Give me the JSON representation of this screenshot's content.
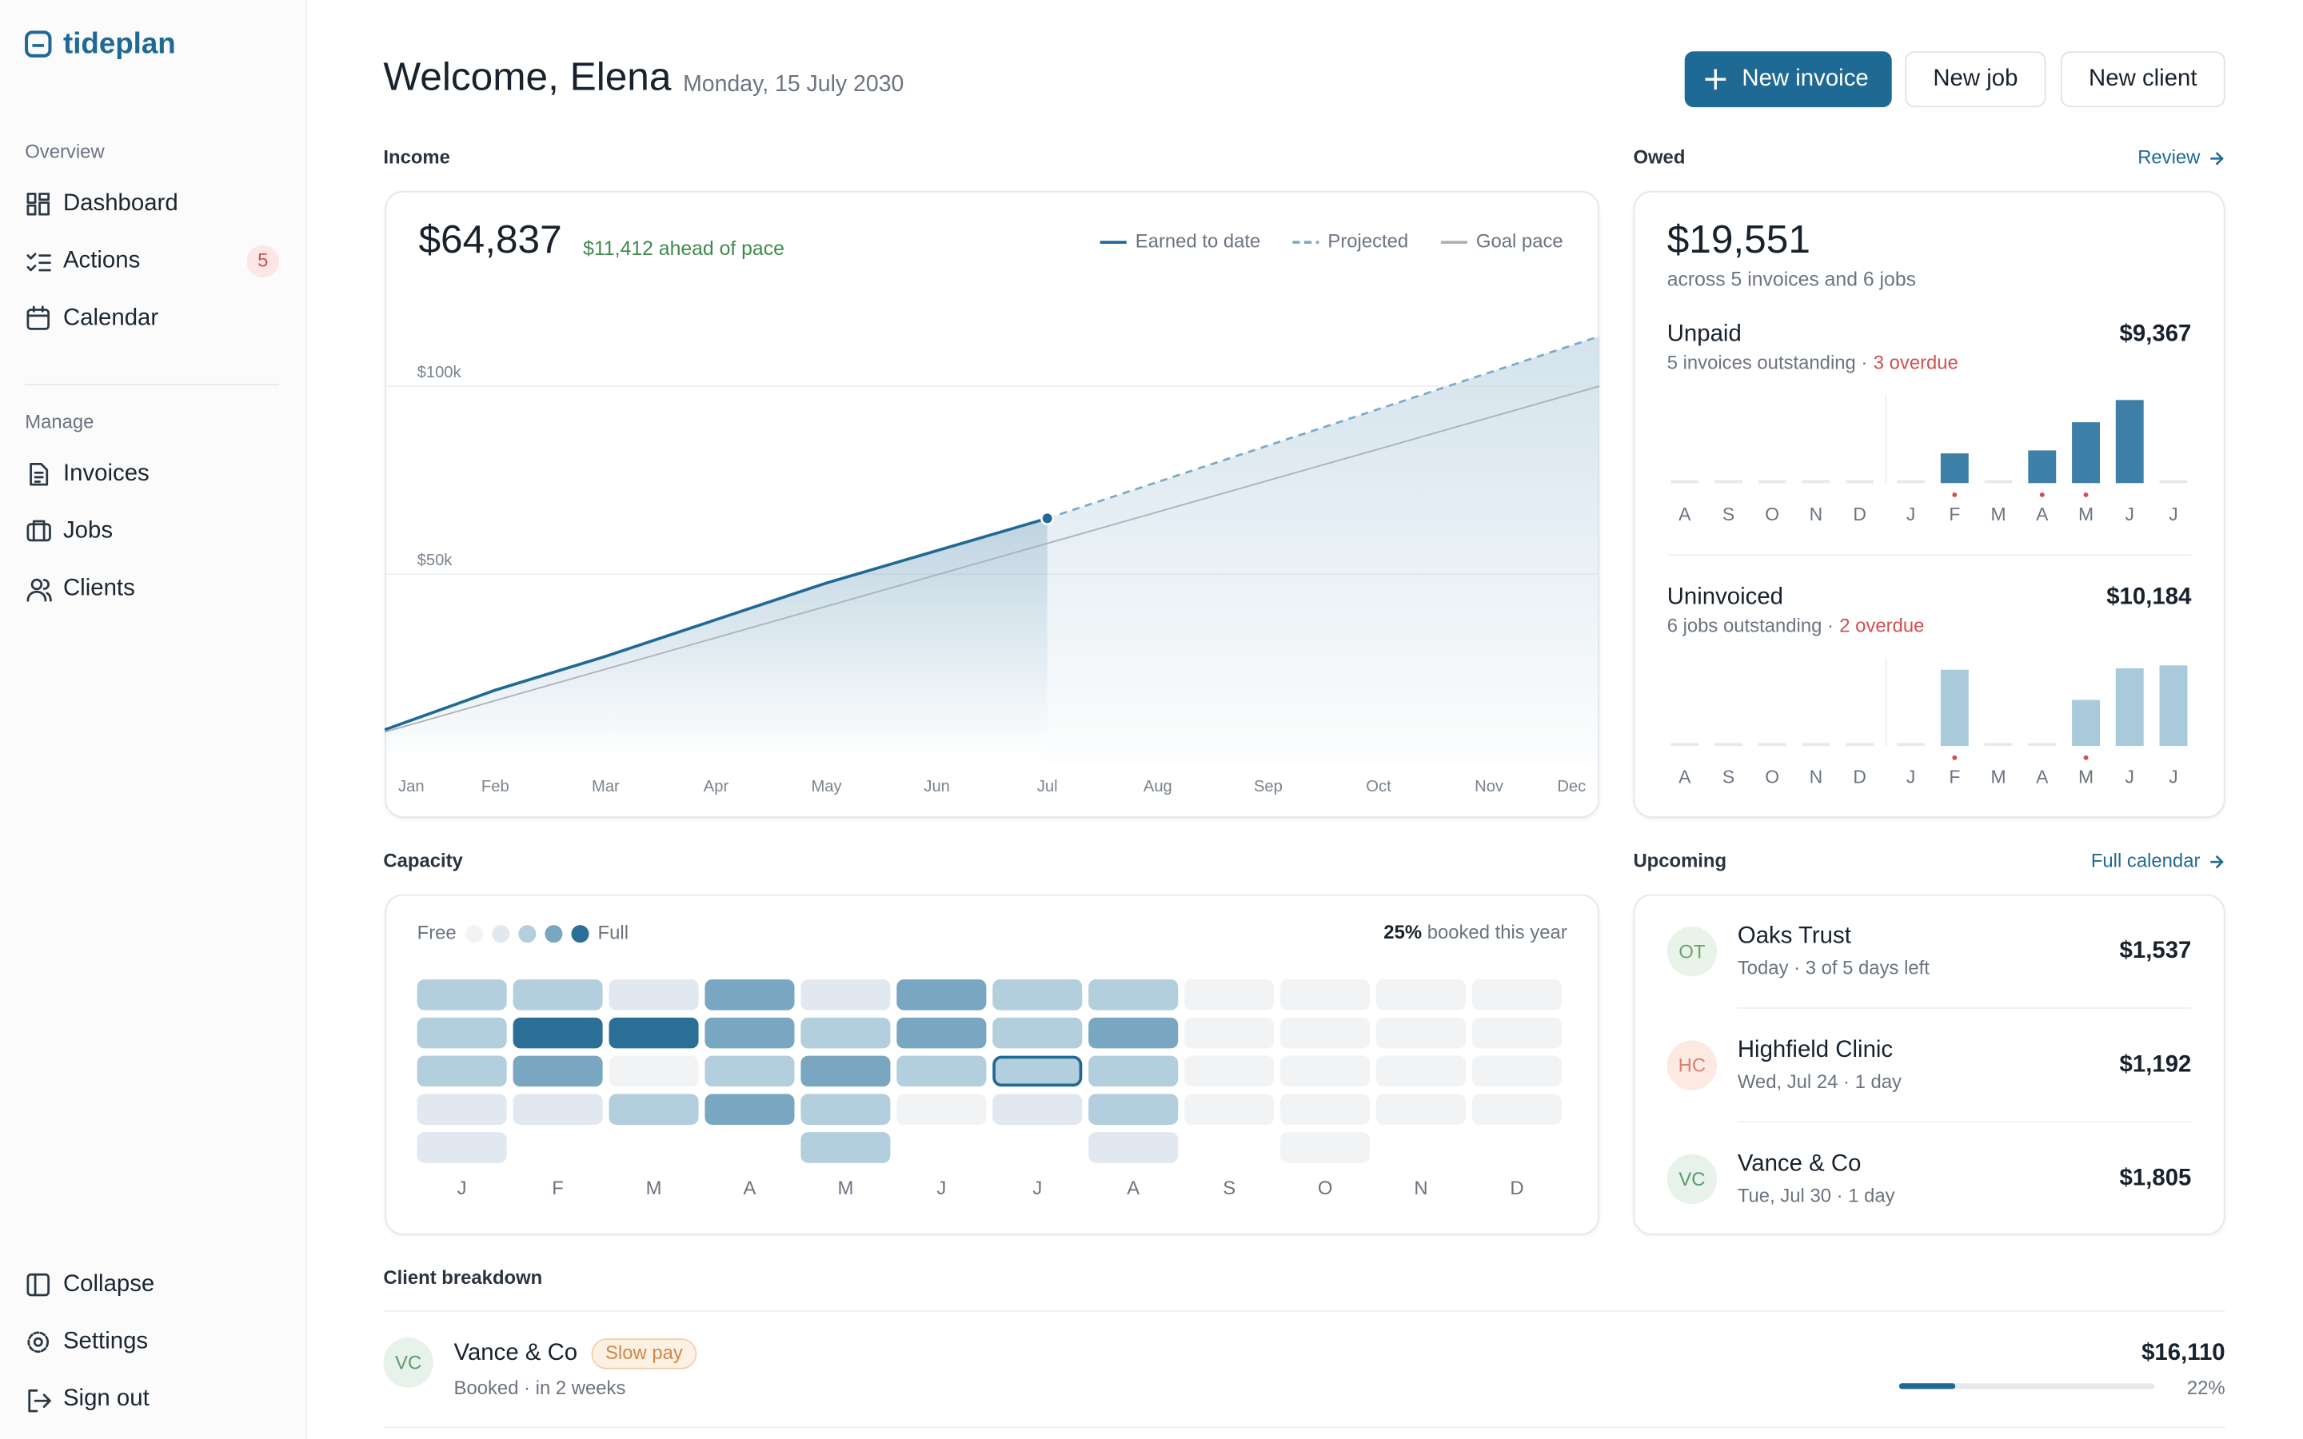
{
  "sidebar": {
    "brand": "tideplan",
    "sections": [
      {
        "title": "Overview",
        "items": [
          {
            "label": "Dashboard"
          },
          {
            "label": "Actions",
            "badge": 5
          },
          {
            "label": "Calendar"
          }
        ]
      },
      {
        "title": "Manage",
        "items": [
          {
            "label": "Invoices"
          },
          {
            "label": "Jobs"
          },
          {
            "label": "Clients"
          }
        ]
      }
    ],
    "footer": [
      {
        "label": "Collapse"
      },
      {
        "label": "Settings"
      },
      {
        "label": "Sign out"
      }
    ]
  },
  "header": {
    "title": "Welcome, Elena",
    "date": "Monday, 15 July 2030",
    "actions": [
      "New invoice",
      "New job",
      "New client"
    ]
  },
  "income": {
    "label": "Income",
    "total": "$64,837",
    "note": "$11,412 ahead of pace",
    "chart_data": {
      "type": "line",
      "categories": [
        "Jan",
        "Feb",
        "Mar",
        "Apr",
        "May",
        "Jun",
        "Jul",
        "Aug",
        "Sep",
        "Oct",
        "Nov",
        "Dec"
      ],
      "ylim": [
        0,
        115000
      ],
      "yticks": [
        {
          "value": 50000,
          "label": "$50k"
        },
        {
          "value": 100000,
          "label": "$100k"
        }
      ],
      "grid": true,
      "series": [
        {
          "name": "Earned to date",
          "color": "#1f6a94",
          "values": [
            8600,
            19140,
            28125,
            37900,
            47650,
            56250,
            64837,
            null,
            null,
            null,
            null,
            null
          ]
        },
        {
          "name": "Projected",
          "color": "#7eaac6",
          "dashed": true,
          "values": [
            null,
            null,
            null,
            null,
            null,
            null,
            64837,
            74526,
            84215,
            93904,
            103593,
            113282
          ]
        },
        {
          "name": "Goal pace",
          "color": "#aab3ba",
          "values": [
            8000,
            16364,
            24727,
            33091,
            41455,
            49818,
            58182,
            66545,
            74909,
            83273,
            91636,
            100000
          ]
        }
      ]
    }
  },
  "owed": {
    "label": "Owed",
    "link": "Review",
    "total": "$19,551",
    "subtitle": "across 5 invoices and 6 jobs",
    "groups": [
      {
        "title": "Unpaid",
        "amount": "$9,367",
        "detail": "5 invoices outstanding ·",
        "overdue_text": "3 overdue",
        "chart_data": {
          "type": "bar",
          "categories": [
            "A",
            "S",
            "O",
            "N",
            "D",
            "J",
            "F",
            "M",
            "A",
            "M",
            "J",
            "J"
          ],
          "values": [
            0,
            0,
            0,
            0,
            0,
            0,
            1348,
            0,
            1483,
            2763,
            3773,
            0
          ],
          "overdue": [
            false,
            false,
            false,
            false,
            false,
            false,
            true,
            false,
            true,
            true,
            false,
            false
          ],
          "color": "#3d7fa6",
          "ylim": [
            0,
            4000
          ]
        }
      },
      {
        "title": "Uninvoiced",
        "amount": "$10,184",
        "detail": "6 jobs outstanding ·",
        "overdue_text": "2 overdue",
        "chart_data": {
          "type": "bar",
          "categories": [
            "A",
            "S",
            "O",
            "N",
            "D",
            "J",
            "F",
            "M",
            "A",
            "M",
            "J",
            "J"
          ],
          "values": [
            0,
            0,
            0,
            0,
            0,
            0,
            2768,
            0,
            0,
            1671,
            2820,
            2925
          ],
          "overdue": [
            false,
            false,
            false,
            false,
            false,
            false,
            true,
            false,
            false,
            true,
            false,
            false
          ],
          "color": "#a9cadb",
          "ylim": [
            0,
            3200
          ]
        }
      }
    ]
  },
  "capacity": {
    "label": "Capacity",
    "legend_free": "Free",
    "legend_full": "Full",
    "booked": "25%",
    "booked_text": " booked this year",
    "palette": [
      "#f2f3f5",
      "#e2e8ef",
      "#b3cedc",
      "#79a6c0",
      "#2b6f97"
    ],
    "chart_data": {
      "type": "heatmap",
      "categories": [
        "J",
        "F",
        "M",
        "A",
        "M",
        "J",
        "J",
        "A",
        "S",
        "O",
        "N",
        "D"
      ],
      "values": [
        [
          2,
          2,
          2,
          1,
          1
        ],
        [
          2,
          4,
          3,
          1
        ],
        [
          1,
          4,
          0,
          2
        ],
        [
          3,
          3,
          2,
          3
        ],
        [
          1,
          2,
          3,
          2,
          2
        ],
        [
          3,
          3,
          2,
          0
        ],
        [
          2,
          2,
          2,
          1
        ],
        [
          2,
          3,
          2,
          2,
          1
        ],
        [
          0,
          0,
          0,
          0
        ],
        [
          0,
          0,
          0,
          0,
          0
        ],
        [
          0,
          0,
          0,
          0
        ],
        [
          0,
          0,
          0,
          0
        ]
      ],
      "today": [
        6,
        2
      ]
    }
  },
  "upcoming": {
    "label": "Upcoming",
    "link": "Full calendar",
    "items": [
      {
        "initials": "OT",
        "name": "Oaks Trust",
        "detail": "Today · 3 of 5 days left",
        "amount": "$1,537",
        "color": "#6aa56f",
        "bg": "#e9f3ea"
      },
      {
        "initials": "HC",
        "name": "Highfield Clinic",
        "detail": "Wed, Jul 24 · 1 day",
        "amount": "$1,192",
        "color": "#d9826a",
        "bg": "#fbe9e2"
      },
      {
        "initials": "VC",
        "name": "Vance & Co",
        "detail": "Tue, Jul 30 · 1 day",
        "amount": "$1,805",
        "color": "#5a9a6e",
        "bg": "#e6f2ea"
      }
    ]
  },
  "clients": {
    "label": "Client breakdown",
    "rows": [
      {
        "initials": "VC",
        "name": "Vance & Co",
        "tag": "Slow pay",
        "detail": "Booked · in 2 weeks",
        "amount": "$16,110",
        "share": 22,
        "share_label": "22%",
        "xlim": [
          0,
          100
        ],
        "color": "#5a9a6e",
        "bg": "#e6f2ea"
      }
    ]
  }
}
